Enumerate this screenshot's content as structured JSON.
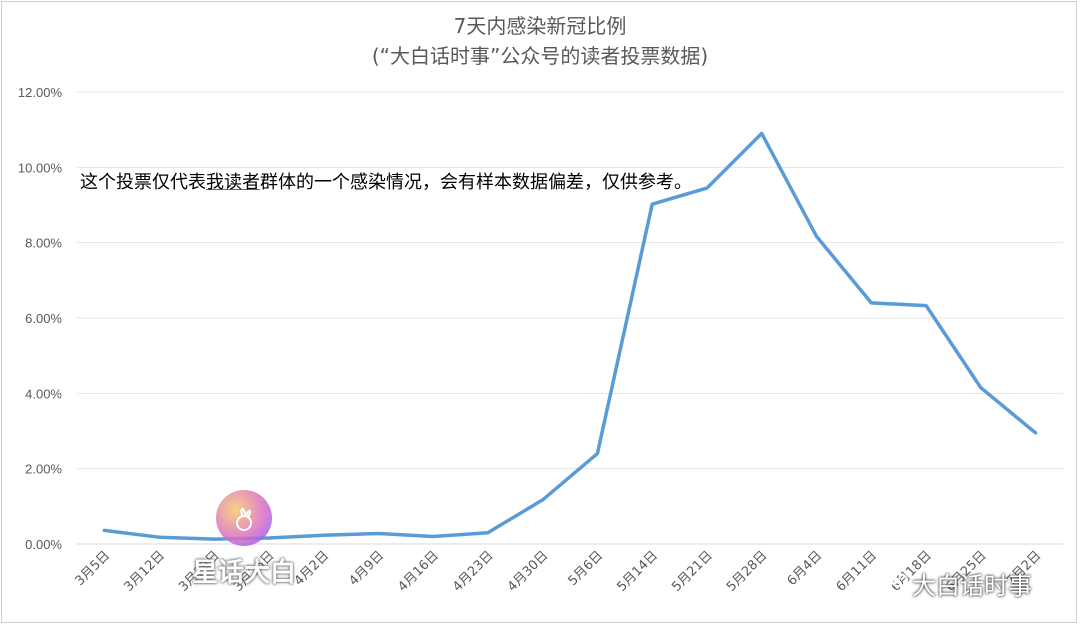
{
  "chart_data": {
    "type": "line",
    "title": "7天内感染新冠比例",
    "subtitle": "(“大白话时事”公众号的读者投票数据)",
    "xlabel": "",
    "ylabel": "",
    "ylim": [
      0,
      12
    ],
    "yticks": [
      "0.00%",
      "2.00%",
      "4.00%",
      "6.00%",
      "8.00%",
      "10.00%",
      "12.00%"
    ],
    "grid": true,
    "categories": [
      "3月5日",
      "3月12日",
      "3月19日",
      "3月26日",
      "4月2日",
      "4月9日",
      "4月16日",
      "4月23日",
      "4月30日",
      "5月6日",
      "5月14日",
      "5月21日",
      "5月28日",
      "6月4日",
      "6月11日",
      "6月18日",
      "6月25日",
      "7月2日"
    ],
    "series": [
      {
        "values": [
          0.36,
          0.18,
          0.13,
          0.16,
          0.23,
          0.28,
          0.2,
          0.3,
          1.17,
          2.4,
          9.02,
          9.45,
          10.9,
          8.17,
          6.4,
          6.33,
          4.15,
          2.95
        ]
      }
    ],
    "line_color": "#5b9bd5"
  },
  "annotation": {
    "before": "这个投票仅代表",
    "underlined": "我读者",
    "after": "群体的一个感染情况，会有样本数据偏差，仅供参考。"
  },
  "watermark": {
    "text": "星话大白",
    "wechat_text": "大白话时事",
    "logo_icon": "rabbit-icon",
    "wechat_icon": "wechat-icon"
  }
}
